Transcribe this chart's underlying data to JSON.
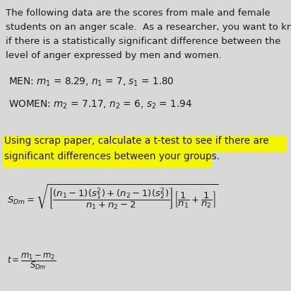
{
  "bg_color": "#d8d8d8",
  "text_color": "#1a1a1a",
  "highlight_color": "#f5f500",
  "para_lines": [
    "The following data are the scores from male and female",
    "students on an anger scale.  As a researcher, you want to know",
    "if there is a statistically significant difference between the",
    "level of anger expressed by men and women."
  ],
  "men_text": "MEN: $m_1$ = 8.29, $n_1$ = 7, $s_1$ = 1.80",
  "women_text": "WOMEN: $m_2$ = 7.17, $n_2$ = 6, $s_2$ = 1.94",
  "highlight_line1": "Using scrap paper, calculate a t-test to see if there are",
  "highlight_line2": "significant differences between your groups.",
  "formula_sdm": "$S_{Dm} = \\sqrt{\\left[\\dfrac{(n_1-1)(s_1^2)+(n_2-1)(s_2^2)}{n_1+n_2-2}\\right]\\left[\\dfrac{1}{n_1}+\\dfrac{1}{n_2}\\right]}$",
  "formula_t": "$t = \\dfrac{m_1 - m_2}{S_{Dm}}$",
  "fontsize_para": 9.5,
  "fontsize_data": 9.8,
  "fontsize_highlight": 9.8,
  "fontsize_formula": 9.5,
  "fontsize_formula_t": 8.5
}
